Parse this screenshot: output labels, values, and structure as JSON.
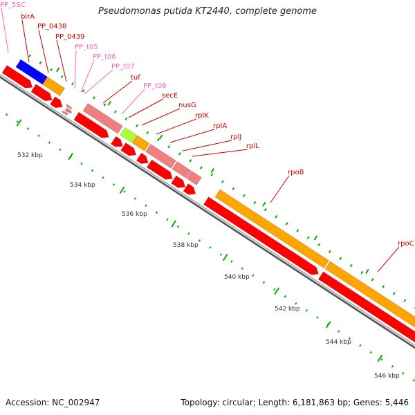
{
  "header": {
    "title": "Pseudomonas putida KT2440, complete genome"
  },
  "footer": {
    "accession": "Accession: NC_002947",
    "topology": "Topology: circular; Length: 6,181,863 bp; Genes: 5,446"
  },
  "colors": {
    "cds": "#ff0000",
    "gene": "#ffa500",
    "trna": "#f08080",
    "rrna_like": "#0000ff",
    "misc": "#adff2f",
    "tick": "#00aa00",
    "backbone": "#999999",
    "label_cds": "#cc0000",
    "label_rna": "#ff69b4"
  },
  "ruler": {
    "ticks": [
      "532 kbp",
      "534 kbp",
      "536 kbp",
      "538 kbp",
      "540 kbp",
      "542 kbp",
      "544 kbp",
      "546 kbp"
    ]
  },
  "features": [
    {
      "name": "PP_5SC",
      "kind": "rna"
    },
    {
      "name": "birA",
      "kind": "cds"
    },
    {
      "name": "PP_0438",
      "kind": "cds"
    },
    {
      "name": "PP_0439",
      "kind": "cds"
    },
    {
      "name": "PP_t05",
      "kind": "rna"
    },
    {
      "name": "PP_t06",
      "kind": "rna"
    },
    {
      "name": "PP_t07",
      "kind": "rna"
    },
    {
      "name": "tuf",
      "kind": "cds"
    },
    {
      "name": "PP_t08",
      "kind": "rna"
    },
    {
      "name": "secE",
      "kind": "cds"
    },
    {
      "name": "nusG",
      "kind": "cds"
    },
    {
      "name": "rplK",
      "kind": "cds"
    },
    {
      "name": "rplA",
      "kind": "cds"
    },
    {
      "name": "rplJ",
      "kind": "cds"
    },
    {
      "name": "rplL",
      "kind": "cds"
    },
    {
      "name": "rpoB",
      "kind": "cds"
    },
    {
      "name": "rpoC",
      "kind": "cds"
    }
  ]
}
